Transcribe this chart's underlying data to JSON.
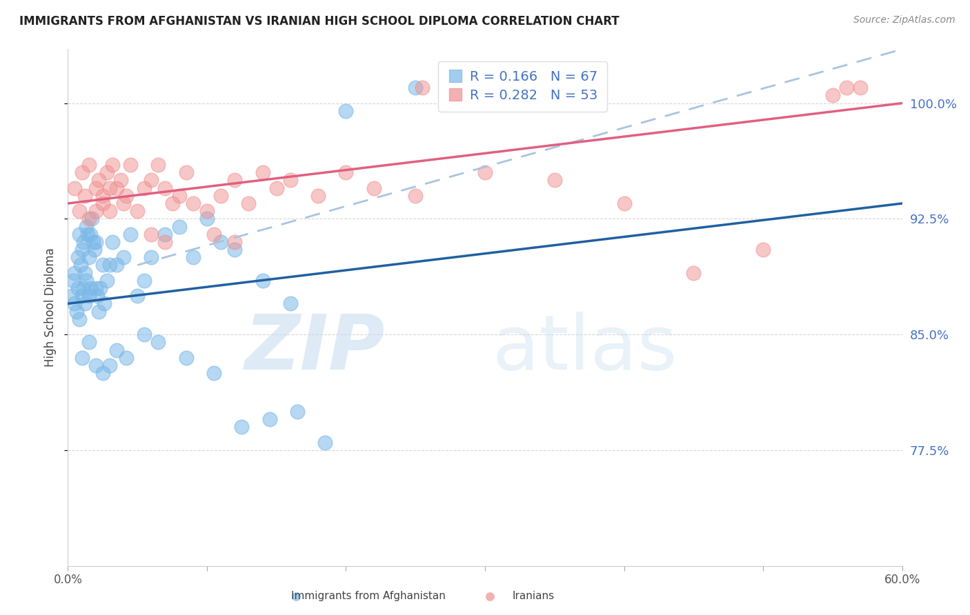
{
  "title": "IMMIGRANTS FROM AFGHANISTAN VS IRANIAN HIGH SCHOOL DIPLOMA CORRELATION CHART",
  "source": "Source: ZipAtlas.com",
  "ylabel": "High School Diploma",
  "legend_label1": "Immigrants from Afghanistan",
  "legend_label2": "Iranians",
  "R1": 0.166,
  "N1": 67,
  "R2": 0.282,
  "N2": 53,
  "color_blue": "#7BB8E8",
  "color_pink": "#F09090",
  "color_blue_line": "#2060A0",
  "color_pink_line": "#E06080",
  "color_dashed": "#A8C4E0",
  "xlim": [
    0.0,
    60.0
  ],
  "ylim": [
    70.0,
    103.5
  ],
  "yticks": [
    77.5,
    85.0,
    92.5,
    100.0
  ],
  "xticks": [
    0.0,
    10.0,
    20.0,
    30.0,
    40.0,
    50.0,
    60.0
  ],
  "ytick_labels": [
    "77.5%",
    "85.0%",
    "92.5%",
    "100.0%"
  ],
  "blue_line_x": [
    0.0,
    60.0
  ],
  "blue_line_y": [
    87.0,
    93.5
  ],
  "pink_line_x": [
    0.0,
    60.0
  ],
  "pink_line_y": [
    93.5,
    100.0
  ],
  "dash_line_x": [
    5.0,
    60.0
  ],
  "dash_line_y": [
    89.5,
    103.5
  ],
  "blue_dots_x": [
    0.3,
    0.4,
    0.5,
    0.5,
    0.6,
    0.7,
    0.7,
    0.8,
    0.8,
    0.9,
    1.0,
    1.0,
    1.1,
    1.1,
    1.2,
    1.2,
    1.3,
    1.3,
    1.4,
    1.5,
    1.5,
    1.6,
    1.6,
    1.7,
    1.8,
    1.9,
    2.0,
    2.0,
    2.1,
    2.2,
    2.3,
    2.5,
    2.6,
    2.8,
    3.0,
    3.2,
    3.5,
    4.0,
    4.5,
    5.0,
    5.5,
    6.0,
    7.0,
    8.0,
    9.0,
    10.0,
    11.0,
    12.0,
    14.0,
    16.0,
    1.0,
    1.5,
    2.0,
    2.5,
    3.0,
    3.5,
    4.2,
    5.5,
    6.5,
    8.5,
    10.5,
    12.5,
    14.5,
    16.5,
    18.5,
    20.0,
    25.0
  ],
  "blue_dots_y": [
    87.5,
    88.5,
    87.0,
    89.0,
    86.5,
    88.0,
    90.0,
    91.5,
    86.0,
    89.5,
    87.5,
    90.5,
    88.0,
    91.0,
    87.0,
    89.0,
    88.5,
    92.0,
    91.5,
    87.5,
    90.0,
    88.0,
    91.5,
    92.5,
    91.0,
    90.5,
    88.0,
    91.0,
    87.5,
    86.5,
    88.0,
    89.5,
    87.0,
    88.5,
    89.5,
    91.0,
    89.5,
    90.0,
    91.5,
    87.5,
    88.5,
    90.0,
    91.5,
    92.0,
    90.0,
    92.5,
    91.0,
    90.5,
    88.5,
    87.0,
    83.5,
    84.5,
    83.0,
    82.5,
    83.0,
    84.0,
    83.5,
    85.0,
    84.5,
    83.5,
    82.5,
    79.0,
    79.5,
    80.0,
    78.0,
    99.5,
    101.0
  ],
  "pink_dots_x": [
    0.5,
    0.8,
    1.0,
    1.2,
    1.5,
    1.5,
    2.0,
    2.0,
    2.2,
    2.5,
    2.5,
    2.8,
    3.0,
    3.0,
    3.2,
    3.5,
    3.8,
    4.0,
    4.2,
    4.5,
    5.0,
    5.5,
    6.0,
    6.5,
    7.0,
    7.5,
    8.0,
    8.5,
    9.0,
    10.0,
    11.0,
    12.0,
    13.0,
    14.0,
    15.0,
    16.0,
    18.0,
    20.0,
    22.0,
    25.0,
    30.0,
    35.0,
    40.0,
    45.0,
    50.0,
    55.0,
    56.0,
    57.0,
    6.0,
    7.0,
    10.5,
    12.0,
    25.5
  ],
  "pink_dots_y": [
    94.5,
    93.0,
    95.5,
    94.0,
    96.0,
    92.5,
    94.5,
    93.0,
    95.0,
    94.0,
    93.5,
    95.5,
    93.0,
    94.5,
    96.0,
    94.5,
    95.0,
    93.5,
    94.0,
    96.0,
    93.0,
    94.5,
    95.0,
    96.0,
    94.5,
    93.5,
    94.0,
    95.5,
    93.5,
    93.0,
    94.0,
    95.0,
    93.5,
    95.5,
    94.5,
    95.0,
    94.0,
    95.5,
    94.5,
    94.0,
    95.5,
    95.0,
    93.5,
    89.0,
    90.5,
    100.5,
    101.0,
    101.0,
    91.5,
    91.0,
    91.5,
    91.0,
    101.0
  ]
}
